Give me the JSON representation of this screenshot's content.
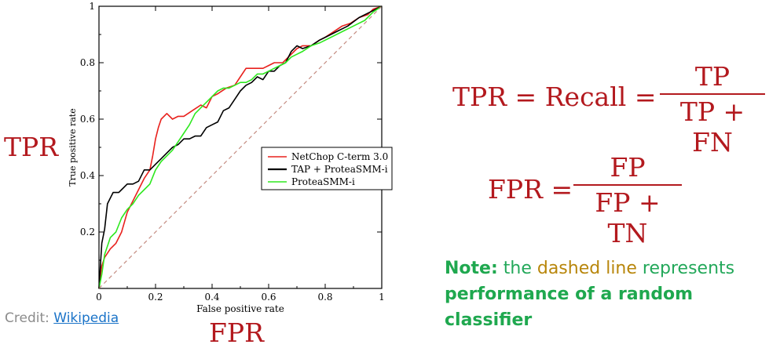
{
  "chart_data": {
    "type": "line",
    "xlabel": "False positive rate",
    "ylabel": "True positive rate",
    "xlim": [
      0,
      1
    ],
    "ylim": [
      0,
      1
    ],
    "x_ticks": [
      "0",
      "0.2",
      "0.4",
      "0.6",
      "0.8",
      "1"
    ],
    "y_ticks": [
      "0.2",
      "0.4",
      "0.6",
      "0.8",
      "1"
    ],
    "legend_position": "center-right",
    "series": [
      {
        "name": "NetChop C-term 3.0",
        "color": "#e8211d",
        "x": [
          0,
          0.01,
          0.02,
          0.04,
          0.06,
          0.08,
          0.1,
          0.12,
          0.14,
          0.16,
          0.18,
          0.19,
          0.2,
          0.21,
          0.22,
          0.24,
          0.26,
          0.28,
          0.3,
          0.33,
          0.36,
          0.38,
          0.4,
          0.42,
          0.45,
          0.48,
          0.5,
          0.52,
          0.55,
          0.58,
          0.6,
          0.62,
          0.65,
          0.68,
          0.7,
          0.72,
          0.75,
          0.78,
          0.8,
          0.83,
          0.86,
          0.89,
          0.92,
          0.95,
          0.97,
          1.0
        ],
        "y": [
          0,
          0.08,
          0.11,
          0.14,
          0.16,
          0.2,
          0.27,
          0.31,
          0.35,
          0.39,
          0.42,
          0.47,
          0.53,
          0.57,
          0.6,
          0.62,
          0.6,
          0.61,
          0.61,
          0.63,
          0.65,
          0.64,
          0.68,
          0.69,
          0.71,
          0.72,
          0.75,
          0.78,
          0.78,
          0.78,
          0.79,
          0.8,
          0.8,
          0.83,
          0.85,
          0.86,
          0.86,
          0.88,
          0.89,
          0.91,
          0.93,
          0.94,
          0.96,
          0.97,
          0.99,
          1.0
        ]
      },
      {
        "name": "TAP + ProteaSMM-i",
        "color": "#000000",
        "x": [
          0,
          0.01,
          0.02,
          0.03,
          0.05,
          0.07,
          0.08,
          0.1,
          0.12,
          0.14,
          0.16,
          0.18,
          0.2,
          0.22,
          0.24,
          0.26,
          0.28,
          0.3,
          0.32,
          0.34,
          0.36,
          0.38,
          0.4,
          0.42,
          0.44,
          0.46,
          0.48,
          0.5,
          0.52,
          0.54,
          0.56,
          0.58,
          0.6,
          0.62,
          0.64,
          0.66,
          0.68,
          0.7,
          0.72,
          0.75,
          0.78,
          0.8,
          0.84,
          0.88,
          0.92,
          0.96,
          1.0
        ],
        "y": [
          0,
          0.16,
          0.21,
          0.3,
          0.34,
          0.34,
          0.35,
          0.37,
          0.37,
          0.38,
          0.42,
          0.42,
          0.44,
          0.46,
          0.48,
          0.5,
          0.51,
          0.53,
          0.53,
          0.54,
          0.54,
          0.57,
          0.58,
          0.59,
          0.63,
          0.64,
          0.67,
          0.7,
          0.72,
          0.73,
          0.75,
          0.74,
          0.77,
          0.77,
          0.79,
          0.8,
          0.84,
          0.86,
          0.85,
          0.86,
          0.88,
          0.89,
          0.91,
          0.93,
          0.96,
          0.98,
          1.0
        ]
      },
      {
        "name": "ProteaSMM-i",
        "color": "#2ee81f",
        "x": [
          0,
          0.01,
          0.02,
          0.04,
          0.06,
          0.08,
          0.1,
          0.12,
          0.14,
          0.16,
          0.18,
          0.2,
          0.22,
          0.24,
          0.26,
          0.28,
          0.3,
          0.32,
          0.34,
          0.36,
          0.38,
          0.4,
          0.42,
          0.44,
          0.46,
          0.48,
          0.5,
          0.52,
          0.54,
          0.56,
          0.58,
          0.6,
          0.62,
          0.64,
          0.66,
          0.68,
          0.7,
          0.72,
          0.75,
          0.78,
          0.82,
          0.86,
          0.9,
          0.94,
          0.97,
          1.0
        ],
        "y": [
          0,
          0.05,
          0.12,
          0.18,
          0.2,
          0.25,
          0.28,
          0.3,
          0.33,
          0.35,
          0.37,
          0.42,
          0.45,
          0.47,
          0.49,
          0.52,
          0.55,
          0.58,
          0.62,
          0.64,
          0.66,
          0.68,
          0.7,
          0.71,
          0.71,
          0.72,
          0.73,
          0.73,
          0.74,
          0.76,
          0.76,
          0.77,
          0.78,
          0.79,
          0.8,
          0.82,
          0.83,
          0.84,
          0.86,
          0.87,
          0.89,
          0.91,
          0.93,
          0.95,
          0.98,
          1.0
        ]
      },
      {
        "name": "",
        "color": "#c48b80",
        "dashed": true,
        "x": [
          0,
          1
        ],
        "y": [
          0,
          1
        ]
      }
    ]
  },
  "labels": {
    "tpr": "TPR",
    "fpr": "FPR"
  },
  "credit": {
    "prefix": "Credit: ",
    "link": "Wikipedia"
  },
  "formulas": {
    "tpr_lhs": "TPR = Recall =",
    "tpr_num": "TP",
    "tpr_den": "TP + FN",
    "fpr_lhs": "FPR =",
    "fpr_num": "FP",
    "fpr_den": "FP + TN"
  },
  "note": {
    "lead": "Note:",
    "part1": " the ",
    "dashed": "dashed line",
    "part2": " represents ",
    "bold1": "performance of a random classifier"
  }
}
